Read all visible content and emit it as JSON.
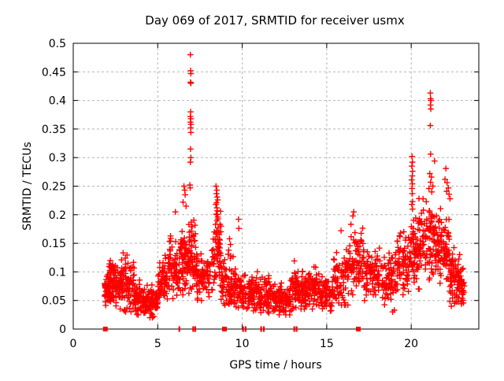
{
  "colors": {
    "marker": "#ff0000",
    "grid": "#b4b4b4",
    "border": "#000000",
    "background": "#ffffff",
    "text": "#000000"
  },
  "chart_data": {
    "type": "scatter",
    "title": "Day 069 of 2017, SRMTID for receiver usmx",
    "xlabel": "GPS time / hours",
    "ylabel": "SRMTID / TECUs",
    "xlim": [
      0,
      24
    ],
    "ylim": [
      0,
      0.5
    ],
    "x_ticks": [
      0,
      5,
      10,
      15,
      20
    ],
    "x_tick_labels": [
      "0",
      "5",
      "10",
      "15",
      "20"
    ],
    "y_ticks": [
      0,
      0.05,
      0.1,
      0.15,
      0.2,
      0.25,
      0.3,
      0.35,
      0.4,
      0.45,
      0.5
    ],
    "y_tick_labels": [
      "0",
      "0.05",
      "0.1",
      "0.15",
      "0.2",
      "0.25",
      "0.3",
      "0.35",
      "0.4",
      "0.45",
      "0.5"
    ],
    "grid": true,
    "legend": "none",
    "marker": "plus",
    "marker_color": "#ff0000",
    "data_time_span_hours": [
      1.85,
      23.15
    ],
    "cluster_format": "[t_start_h, t_end_h, n_points, y_center_TECU, y_spread_TECU, y_min_TECU, y_max_TECU]",
    "clusters": [
      [
        1.85,
        2.1,
        45,
        0.068,
        0.023,
        0.035,
        0.105
      ],
      [
        2.1,
        2.5,
        60,
        0.082,
        0.032,
        0.04,
        0.135
      ],
      [
        2.5,
        3.0,
        65,
        0.082,
        0.037,
        0.035,
        0.145
      ],
      [
        3.0,
        3.6,
        65,
        0.075,
        0.037,
        0.03,
        0.14
      ],
      [
        3.6,
        4.4,
        85,
        0.052,
        0.023,
        0.025,
        0.095
      ],
      [
        4.4,
        5.0,
        60,
        0.048,
        0.023,
        0.02,
        0.09
      ],
      [
        5.0,
        5.6,
        60,
        0.082,
        0.037,
        0.04,
        0.15
      ],
      [
        5.6,
        6.3,
        70,
        0.105,
        0.047,
        0.05,
        0.19
      ],
      [
        6.3,
        6.85,
        65,
        0.125,
        0.058,
        0.06,
        0.235
      ],
      [
        6.85,
        7.25,
        50,
        0.135,
        0.057,
        0.07,
        0.24
      ],
      [
        7.25,
        8.25,
        85,
        0.095,
        0.038,
        0.05,
        0.165
      ],
      [
        8.25,
        8.75,
        55,
        0.13,
        0.06,
        0.06,
        0.24
      ],
      [
        8.75,
        9.5,
        70,
        0.08,
        0.035,
        0.04,
        0.145
      ],
      [
        9.5,
        10.05,
        55,
        0.067,
        0.027,
        0.035,
        0.115
      ],
      [
        10.05,
        11.0,
        85,
        0.062,
        0.027,
        0.03,
        0.11
      ],
      [
        11.0,
        12.0,
        90,
        0.057,
        0.024,
        0.028,
        0.1
      ],
      [
        12.0,
        12.85,
        80,
        0.054,
        0.024,
        0.025,
        0.098
      ],
      [
        12.85,
        13.6,
        75,
        0.066,
        0.032,
        0.03,
        0.125
      ],
      [
        13.6,
        14.6,
        90,
        0.07,
        0.028,
        0.035,
        0.12
      ],
      [
        14.6,
        15.4,
        75,
        0.06,
        0.025,
        0.03,
        0.105
      ],
      [
        15.4,
        16.3,
        75,
        0.088,
        0.043,
        0.042,
        0.17
      ],
      [
        16.3,
        17.2,
        80,
        0.118,
        0.047,
        0.06,
        0.2
      ],
      [
        17.2,
        18.3,
        85,
        0.092,
        0.033,
        0.05,
        0.15
      ],
      [
        18.3,
        19.15,
        70,
        0.088,
        0.041,
        0.032,
        0.155
      ],
      [
        19.15,
        19.95,
        75,
        0.115,
        0.043,
        0.06,
        0.19
      ],
      [
        19.95,
        20.65,
        80,
        0.14,
        0.057,
        0.07,
        0.24
      ],
      [
        20.65,
        21.55,
        90,
        0.152,
        0.055,
        0.08,
        0.245
      ],
      [
        21.55,
        22.25,
        80,
        0.14,
        0.048,
        0.08,
        0.225
      ],
      [
        22.25,
        22.95,
        80,
        0.09,
        0.042,
        0.04,
        0.165
      ],
      [
        22.95,
        23.15,
        25,
        0.072,
        0.028,
        0.04,
        0.125
      ]
    ],
    "spike_points": [
      [
        6.93,
        0.48
      ],
      [
        6.95,
        0.452
      ],
      [
        6.96,
        0.447
      ],
      [
        6.94,
        0.432
      ],
      [
        6.96,
        0.43
      ],
      [
        6.95,
        0.38
      ],
      [
        6.93,
        0.372
      ],
      [
        6.96,
        0.368
      ],
      [
        6.94,
        0.362
      ],
      [
        6.97,
        0.358
      ],
      [
        6.95,
        0.352
      ],
      [
        6.96,
        0.344
      ],
      [
        6.94,
        0.315
      ],
      [
        6.96,
        0.3
      ],
      [
        6.93,
        0.292
      ],
      [
        6.9,
        0.252
      ],
      [
        6.92,
        0.247
      ],
      [
        6.05,
        0.205
      ],
      [
        6.55,
        0.25
      ],
      [
        6.6,
        0.243
      ],
      [
        6.62,
        0.235
      ],
      [
        6.5,
        0.222
      ],
      [
        6.68,
        0.215
      ],
      [
        8.45,
        0.25
      ],
      [
        8.5,
        0.243
      ],
      [
        8.47,
        0.237
      ],
      [
        8.52,
        0.231
      ],
      [
        8.55,
        0.226
      ],
      [
        8.48,
        0.221
      ],
      [
        8.44,
        0.218
      ],
      [
        8.5,
        0.212
      ],
      [
        8.53,
        0.207
      ],
      [
        8.46,
        0.201
      ],
      [
        8.55,
        0.196
      ],
      [
        8.5,
        0.19
      ],
      [
        8.42,
        0.183
      ],
      [
        8.57,
        0.177
      ],
      [
        8.49,
        0.172
      ],
      [
        8.45,
        0.166
      ],
      [
        8.53,
        0.161
      ],
      [
        8.4,
        0.156
      ],
      [
        8.6,
        0.151
      ],
      [
        9.25,
        0.158
      ],
      [
        9.3,
        0.148
      ],
      [
        9.2,
        0.138
      ],
      [
        9.32,
        0.128
      ],
      [
        9.78,
        0.192
      ],
      [
        9.8,
        0.176
      ],
      [
        16.6,
        0.205
      ],
      [
        16.55,
        0.198
      ],
      [
        15.85,
        0.172
      ],
      [
        18.9,
        0.03
      ],
      [
        19.0,
        0.033
      ],
      [
        20.05,
        0.302
      ],
      [
        20.07,
        0.292
      ],
      [
        20.04,
        0.285
      ],
      [
        20.08,
        0.276
      ],
      [
        20.06,
        0.268
      ],
      [
        20.03,
        0.261
      ],
      [
        20.07,
        0.254
      ],
      [
        20.05,
        0.246
      ],
      [
        20.06,
        0.237
      ],
      [
        20.08,
        0.223
      ],
      [
        20.04,
        0.218
      ],
      [
        20.7,
        0.228
      ],
      [
        21.13,
        0.413
      ],
      [
        21.15,
        0.403
      ],
      [
        21.17,
        0.4
      ],
      [
        21.14,
        0.392
      ],
      [
        21.16,
        0.385
      ],
      [
        21.13,
        0.356
      ],
      [
        21.15,
        0.306
      ],
      [
        21.38,
        0.294
      ],
      [
        21.1,
        0.272
      ],
      [
        21.2,
        0.266
      ],
      [
        21.15,
        0.257
      ],
      [
        21.28,
        0.25
      ],
      [
        21.05,
        0.246
      ],
      [
        21.22,
        0.24
      ],
      [
        22.05,
        0.281
      ],
      [
        22.0,
        0.262
      ],
      [
        22.12,
        0.256
      ],
      [
        22.2,
        0.247
      ],
      [
        22.1,
        0.241
      ],
      [
        22.24,
        0.236
      ],
      [
        22.3,
        0.228
      ]
    ],
    "zero_value_markers": [
      {
        "t": 1.9,
        "style": "square"
      },
      {
        "t": 6.28,
        "style": "bar"
      },
      {
        "t": 7.1,
        "style": "bar"
      },
      {
        "t": 7.22,
        "style": "bar"
      },
      {
        "t": 8.95,
        "style": "square"
      },
      {
        "t": 10.05,
        "style": "bar"
      },
      {
        "t": 10.2,
        "style": "bar"
      },
      {
        "t": 11.12,
        "style": "bar"
      },
      {
        "t": 11.28,
        "style": "bar"
      },
      {
        "t": 13.08,
        "style": "bar"
      },
      {
        "t": 13.22,
        "style": "bar"
      },
      {
        "t": 16.87,
        "style": "square"
      }
    ]
  }
}
